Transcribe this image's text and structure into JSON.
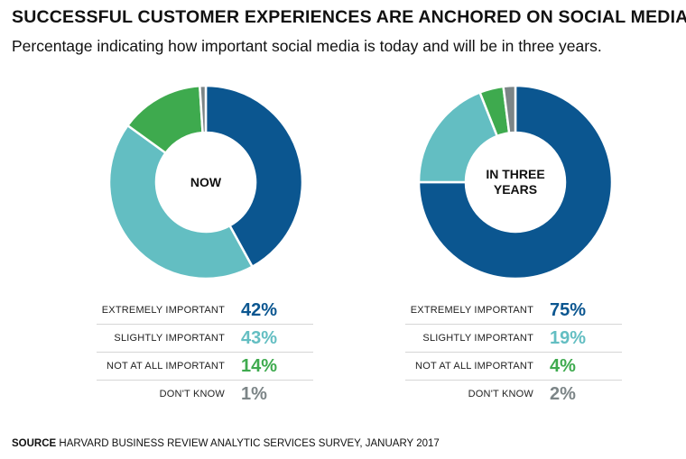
{
  "title": "SUCCESSFUL CUSTOMER EXPERIENCES ARE ANCHORED ON SOCIAL MEDIA",
  "subtitle": "Percentage indicating how important social media is today and will be in three years.",
  "source": {
    "label": "SOURCE",
    "text": "HARVARD BUSINESS REVIEW ANALYTIC SERVICES SURVEY, JANUARY 2017"
  },
  "colors": {
    "extremely": "#0b5690",
    "slightly": "#63bec2",
    "not_at_all": "#3eaa4e",
    "dont_know": "#7c8587"
  },
  "chart_data": [
    {
      "type": "pie",
      "center_label": "NOW",
      "categories": [
        "EXTREMELY IMPORTANT",
        "SLIGHTLY IMPORTANT",
        "NOT AT ALL IMPORTANT",
        "DON'T KNOW"
      ],
      "values": [
        42,
        43,
        14,
        1
      ],
      "value_labels": [
        "42%",
        "43%",
        "14%",
        "1%"
      ]
    },
    {
      "type": "pie",
      "center_label": "IN THREE YEARS",
      "categories": [
        "EXTREMELY IMPORTANT",
        "SLIGHTLY IMPORTANT",
        "NOT AT ALL IMPORTANT",
        "DON'T KNOW"
      ],
      "values": [
        75,
        19,
        4,
        2
      ],
      "value_labels": [
        "75%",
        "19%",
        "4%",
        "2%"
      ]
    }
  ]
}
